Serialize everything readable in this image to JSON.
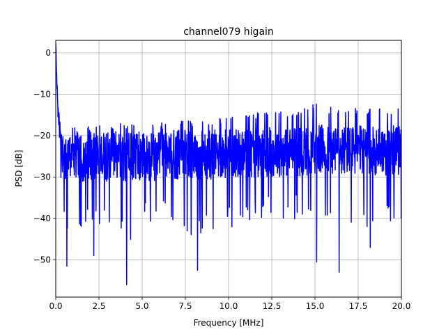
{
  "chart_data": {
    "type": "line",
    "title": "channel079 higain",
    "xlabel": "Frequency [MHz]",
    "ylabel": "PSD [dB]",
    "xlim": [
      0,
      20
    ],
    "ylim": [
      -59,
      3
    ],
    "x_ticks": [
      0,
      2.5,
      5,
      7.5,
      10,
      12.5,
      15,
      17.5,
      20
    ],
    "x_tick_labels": [
      "0.0",
      "2.5",
      "5.0",
      "7.5",
      "10.0",
      "12.5",
      "15.0",
      "17.5",
      "20.0"
    ],
    "y_ticks": [
      0,
      -10,
      -20,
      -30,
      -40,
      -50
    ],
    "y_tick_labels": [
      "0",
      "−10",
      "−20",
      "−30",
      "−40",
      "−50"
    ],
    "grid": true,
    "series": [
      {
        "color": "#0000ff",
        "x": [
          0,
          0.05,
          0.1,
          0.2,
          0.3,
          0.4,
          0.5,
          0.6,
          0.7,
          0.8,
          1.0,
          1.2,
          1.5,
          2.0,
          2.5,
          3.0,
          4.0,
          5.0,
          6.0,
          7.0,
          8.0,
          9.0,
          10.0,
          11.0,
          12.0,
          13.0,
          14.0,
          15.0,
          16.0,
          17.0,
          18.0,
          19.0,
          20.0
        ],
        "upper_envelope": [
          2,
          -8,
          -10,
          -15,
          -16,
          -17,
          -17,
          -17,
          -17,
          -17,
          -17,
          -17,
          -17,
          -18,
          -17,
          -17,
          -17,
          -17,
          -17,
          -16,
          -16,
          -16,
          -15,
          -15,
          -14,
          -14,
          -14,
          -12,
          -13,
          -13,
          -13,
          -13,
          -13
        ],
        "lower_envelope": [
          2,
          -20,
          -24,
          -30,
          -33,
          -36,
          -40,
          -51,
          -43,
          -42,
          -40,
          -43,
          -42,
          -44,
          -43,
          -42,
          -47,
          -42,
          -40,
          -45,
          -47,
          -44,
          -43,
          -41,
          -40,
          -41,
          -40,
          -42,
          -43,
          -44,
          -43,
          -42,
          -40
        ],
        "typical_low": -30,
        "typical_high": -20,
        "notable_minima": [
          {
            "x": 0.65,
            "y": -51.5
          },
          {
            "x": 2.2,
            "y": -49
          },
          {
            "x": 4.1,
            "y": -56
          },
          {
            "x": 8.2,
            "y": -52.5
          },
          {
            "x": 15.1,
            "y": -50.5
          },
          {
            "x": 16.4,
            "y": -53
          },
          {
            "x": 18.2,
            "y": -47
          }
        ]
      }
    ]
  }
}
